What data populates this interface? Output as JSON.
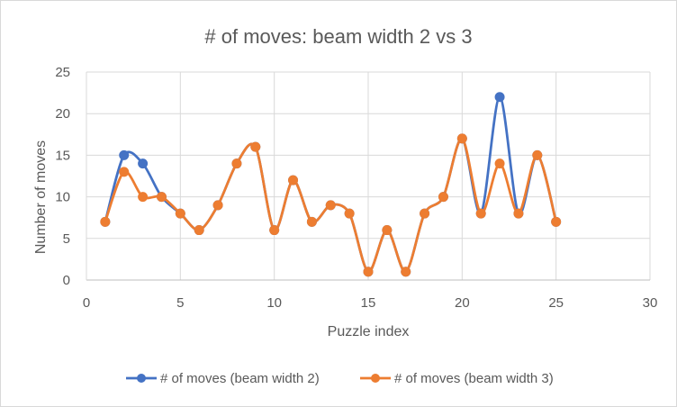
{
  "chart_data": {
    "type": "line",
    "title": "# of moves: beam width 2 vs 3",
    "xlabel": "Puzzle index",
    "ylabel": "Number of moves",
    "xlim": [
      0,
      30
    ],
    "ylim": [
      0,
      25
    ],
    "x_ticks": [
      "0",
      "5",
      "10",
      "15",
      "20",
      "25",
      "30"
    ],
    "y_ticks": [
      "0",
      "5",
      "10",
      "15",
      "20",
      "25"
    ],
    "grid": true,
    "smooth": true,
    "legend_position": "bottom",
    "x": [
      1,
      2,
      3,
      4,
      5,
      6,
      7,
      8,
      9,
      10,
      11,
      12,
      13,
      14,
      15,
      16,
      17,
      18,
      19,
      20,
      21,
      22,
      23,
      24,
      25
    ],
    "series": [
      {
        "name": "# of moves (beam width 2)",
        "color": "#4472C4",
        "values": [
          7,
          15,
          14,
          10,
          8,
          6,
          9,
          14,
          16,
          6,
          12,
          7,
          9,
          8,
          1,
          6,
          1,
          8,
          10,
          17,
          8,
          22,
          8,
          15,
          7
        ]
      },
      {
        "name": "# of moves (beam width 3)",
        "color": "#ED7D31",
        "values": [
          7,
          13,
          10,
          10,
          8,
          6,
          9,
          14,
          16,
          6,
          12,
          7,
          9,
          8,
          1,
          6,
          1,
          8,
          10,
          17,
          8,
          14,
          8,
          15,
          7
        ]
      }
    ]
  }
}
